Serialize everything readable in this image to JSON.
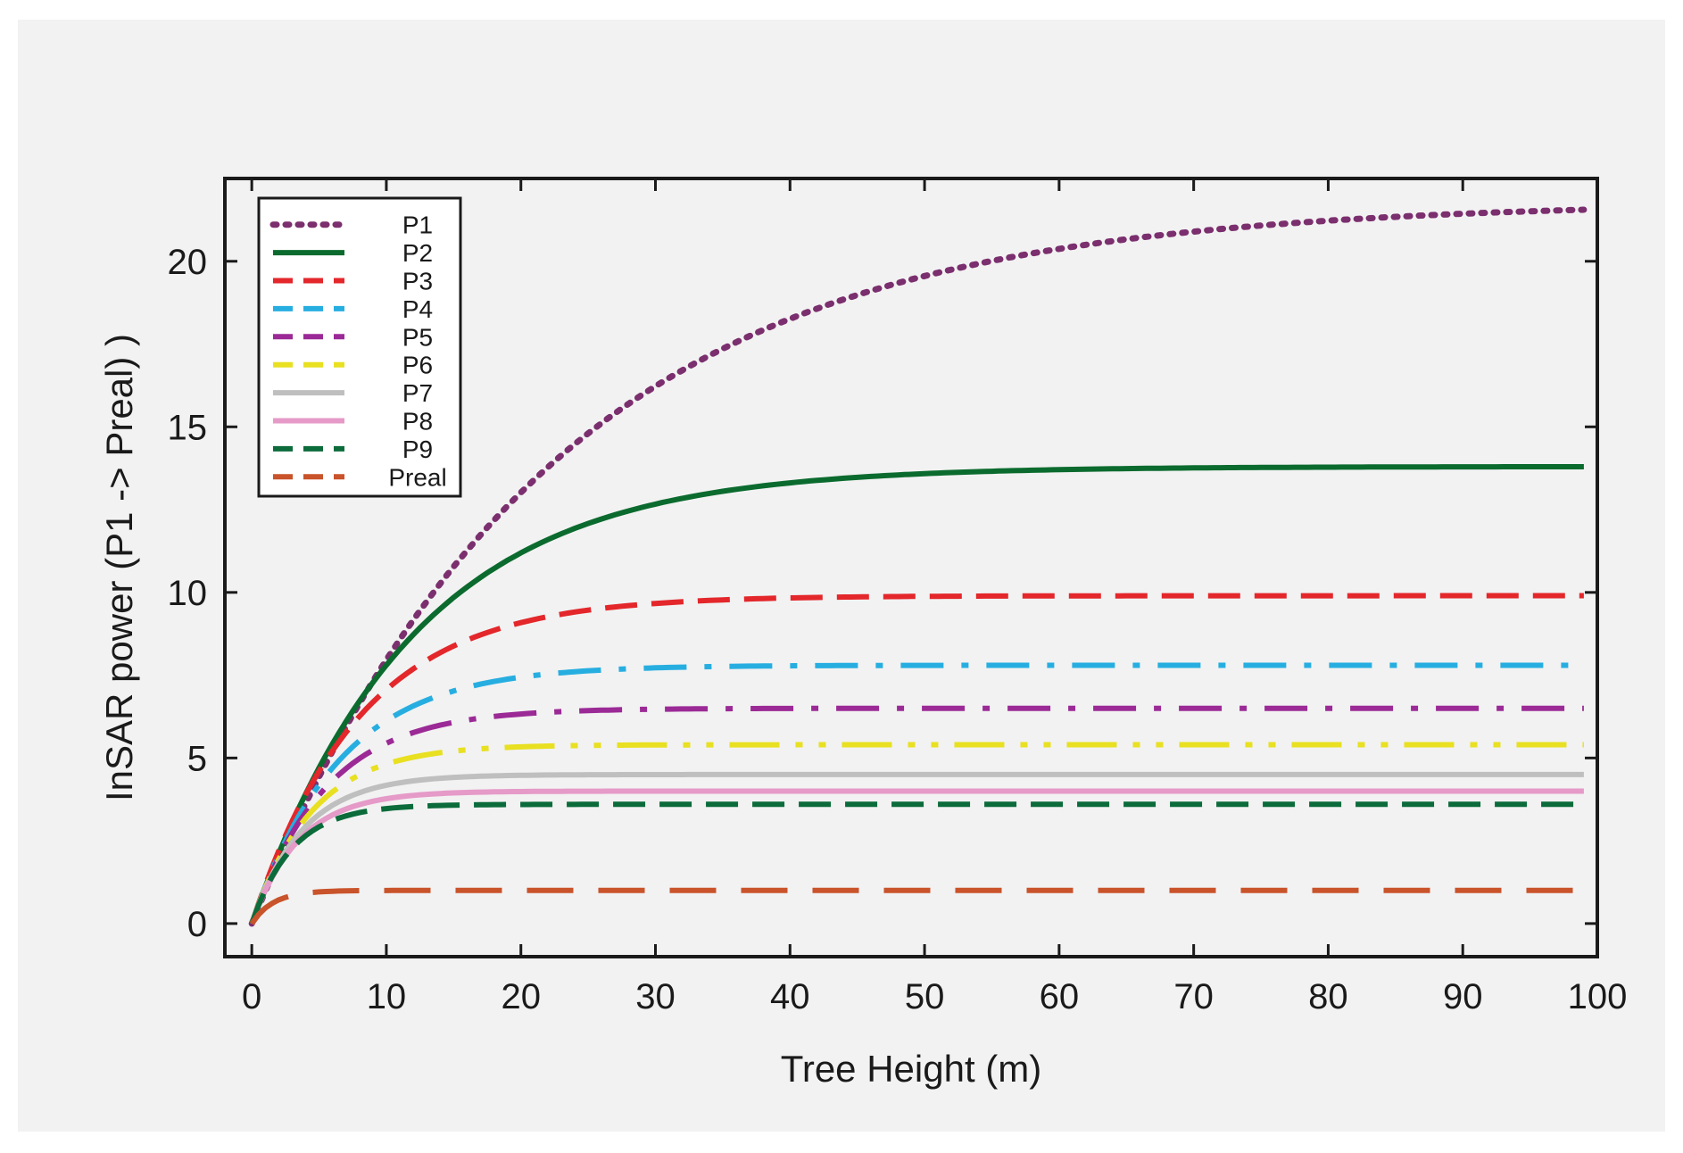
{
  "chart_data": {
    "type": "line",
    "title": "",
    "xlabel": "Tree Height (m)",
    "ylabel": "InSAR power (P1 -> Preal) )",
    "xlim": [
      -2,
      100
    ],
    "ylim": [
      -1,
      22.5
    ],
    "grid": false,
    "legend_position": "top-left",
    "xticks": [
      0,
      10,
      20,
      30,
      40,
      50,
      60,
      70,
      80,
      90,
      100
    ],
    "yticks": [
      0,
      5,
      10,
      15,
      20
    ],
    "series": [
      {
        "name": "P1",
        "color": "#7b2f6e",
        "style": "dotted",
        "plateau": 21.8,
        "scale": 22
      },
      {
        "name": "P2",
        "color": "#0b6b2e",
        "style": "solid",
        "plateau": 13.8,
        "scale": 12
      },
      {
        "name": "P3",
        "color": "#e3272b",
        "style": "dashed",
        "plateau": 9.9,
        "scale": 8
      },
      {
        "name": "P4",
        "color": "#27aee0",
        "style": "dashdot",
        "plateau": 7.8,
        "scale": 6.5
      },
      {
        "name": "P5",
        "color": "#9b2a96",
        "style": "dashdot",
        "plateau": 6.5,
        "scale": 5.5
      },
      {
        "name": "P6",
        "color": "#e8e020",
        "style": "dashdotdot",
        "plateau": 5.4,
        "scale": 4.5
      },
      {
        "name": "P7",
        "color": "#bfbfbf",
        "style": "solid",
        "plateau": 4.5,
        "scale": 3.8
      },
      {
        "name": "P8",
        "color": "#e59ac8",
        "style": "solid",
        "plateau": 4.0,
        "scale": 3.5
      },
      {
        "name": "P9",
        "color": "#0b6b3a",
        "style": "dashed",
        "plateau": 3.6,
        "scale": 3
      },
      {
        "name": "Preal",
        "color": "#c9532a",
        "style": "longdash",
        "plateau": 1.0,
        "scale": 1.6
      }
    ]
  }
}
